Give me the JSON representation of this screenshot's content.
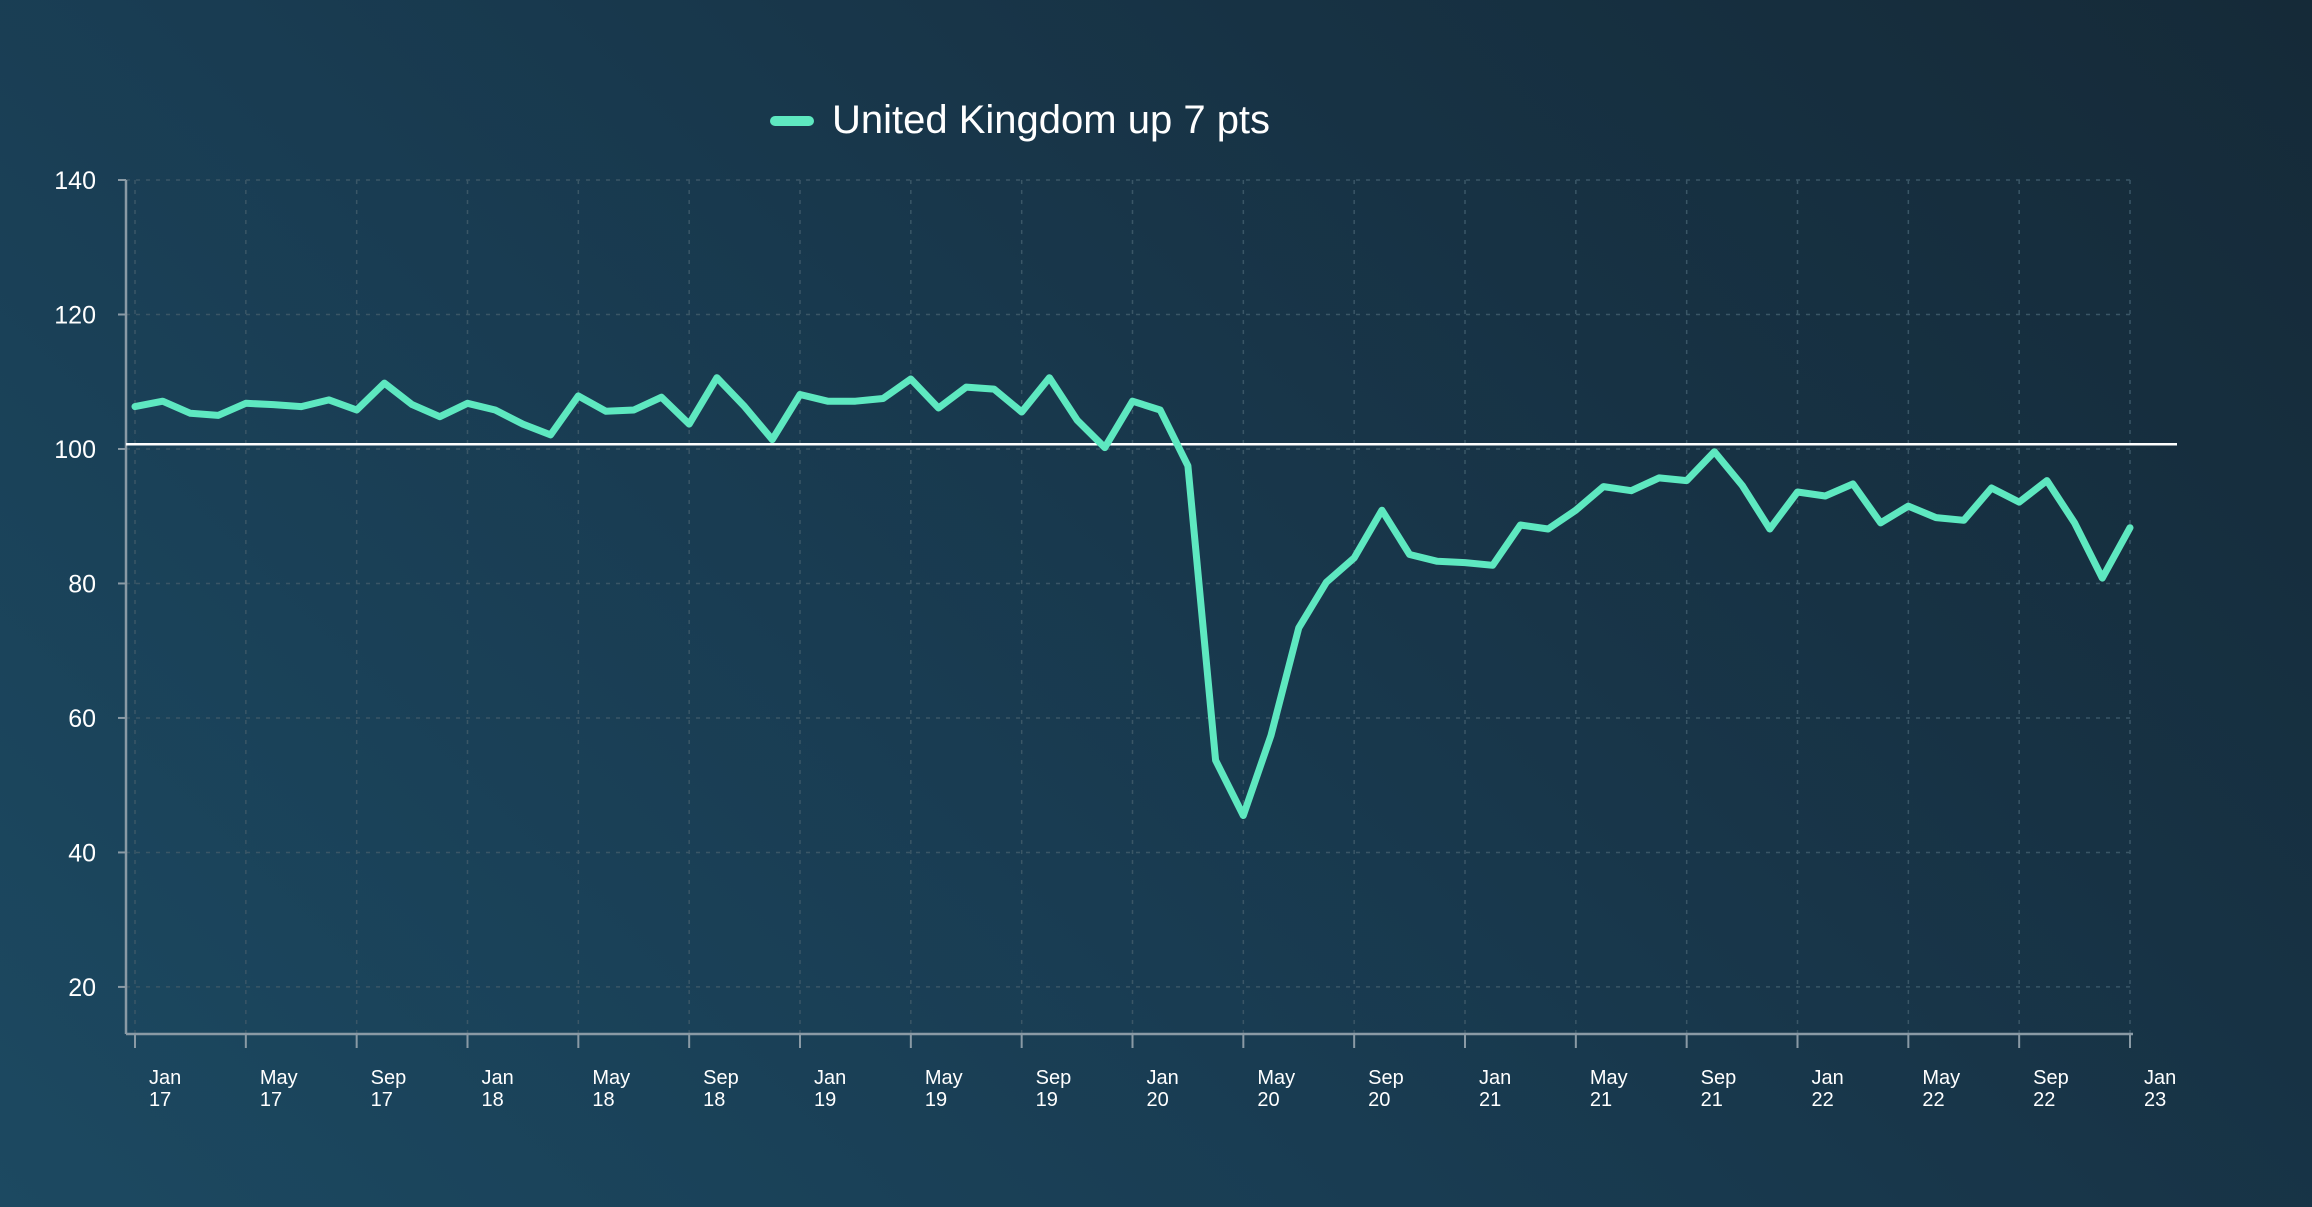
{
  "legend": {
    "label": "United Kingdom up 7 pts"
  },
  "colors": {
    "series": "#5ee8c0",
    "axis": "#8a9aa5",
    "grid": "#3a5666",
    "baseline": "#ffffff",
    "text": "#ffffff"
  },
  "chart_data": {
    "type": "line",
    "title": "",
    "xlabel": "",
    "ylabel": "",
    "ylim": [
      13,
      140
    ],
    "yticks": [
      20,
      40,
      60,
      80,
      100,
      120,
      140
    ],
    "grid": true,
    "reference_line": 100.7,
    "x_ticks": [
      {
        "month": "Jan",
        "year": "17"
      },
      {
        "month": "May",
        "year": "17"
      },
      {
        "month": "Sep",
        "year": "17"
      },
      {
        "month": "Jan",
        "year": "18"
      },
      {
        "month": "May",
        "year": "18"
      },
      {
        "month": "Sep",
        "year": "18"
      },
      {
        "month": "Jan",
        "year": "19"
      },
      {
        "month": "May",
        "year": "19"
      },
      {
        "month": "Sep",
        "year": "19"
      },
      {
        "month": "Jan",
        "year": "20"
      },
      {
        "month": "May",
        "year": "20"
      },
      {
        "month": "Sep",
        "year": "20"
      },
      {
        "month": "Jan",
        "year": "21"
      },
      {
        "month": "May",
        "year": "21"
      },
      {
        "month": "Sep",
        "year": "21"
      },
      {
        "month": "Jan",
        "year": "22"
      },
      {
        "month": "May",
        "year": "22"
      },
      {
        "month": "Sep",
        "year": "22"
      },
      {
        "month": "Jan",
        "year": "23"
      }
    ],
    "series": [
      {
        "name": "United Kingdom up 7 pts",
        "values": [
          106.3,
          107.1,
          105.3,
          105.0,
          106.8,
          106.6,
          106.3,
          107.3,
          105.8,
          109.8,
          106.6,
          104.8,
          106.8,
          105.8,
          103.7,
          102.1,
          107.9,
          105.6,
          105.8,
          107.7,
          103.7,
          110.6,
          106.3,
          101.4,
          108.1,
          107.1,
          107.1,
          107.5,
          110.4,
          106.1,
          109.2,
          108.9,
          105.5,
          110.6,
          104.3,
          100.2,
          107.1,
          105.8,
          97.5,
          53.7,
          45.5,
          57.4,
          73.4,
          80.2,
          83.8,
          90.9,
          84.3,
          83.3,
          83.1,
          82.7,
          88.7,
          88.1,
          90.9,
          94.4,
          93.8,
          95.7,
          95.3,
          99.6,
          94.6,
          88.1,
          93.6,
          93.0,
          94.8,
          89.0,
          91.5,
          89.8,
          89.4,
          94.2,
          92.1,
          95.3,
          89.0,
          80.8,
          88.3
        ]
      }
    ]
  }
}
